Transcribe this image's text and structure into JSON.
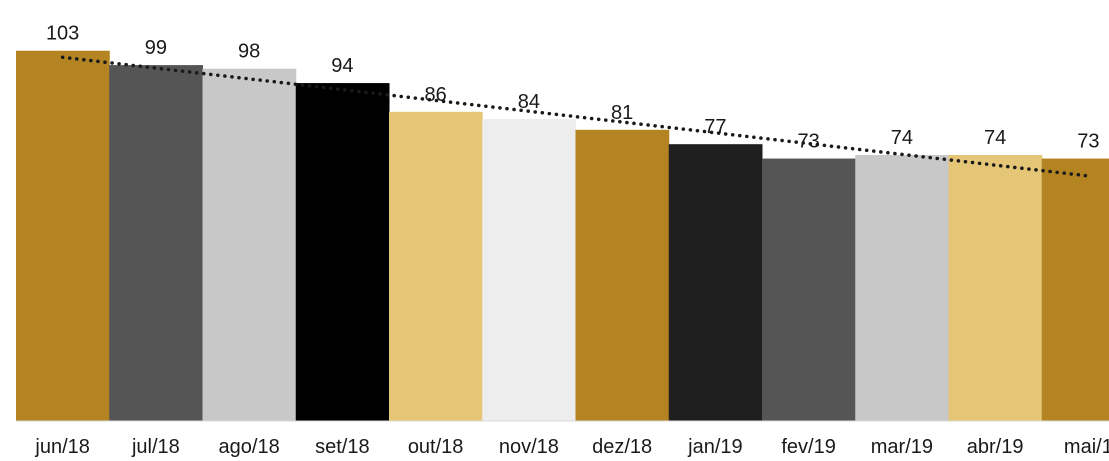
{
  "chart_data": {
    "type": "bar",
    "title": "",
    "xlabel": "",
    "ylabel": "",
    "categories": [
      "jun/18",
      "jul/18",
      "ago/18",
      "set/18",
      "out/18",
      "nov/18",
      "dez/18",
      "jan/19",
      "fev/19",
      "mar/19",
      "abr/19",
      "mai/1"
    ],
    "values": [
      103,
      99,
      98,
      94,
      86,
      84,
      81,
      77,
      73,
      74,
      74,
      73
    ],
    "bar_colors": [
      "#B38421",
      "#555555",
      "#C8C8C8",
      "#000000",
      "#E5C576",
      "#EDEDED",
      "#B38421",
      "#1F1F1F",
      "#555555",
      "#C8C8C8",
      "#E5C576",
      "#B38421"
    ],
    "ylim": [
      0,
      115
    ],
    "data_labels": true,
    "trendline": {
      "type": "linear",
      "style": "dotted",
      "color": "#1a1a1a"
    },
    "grid": false,
    "legend": "none"
  }
}
